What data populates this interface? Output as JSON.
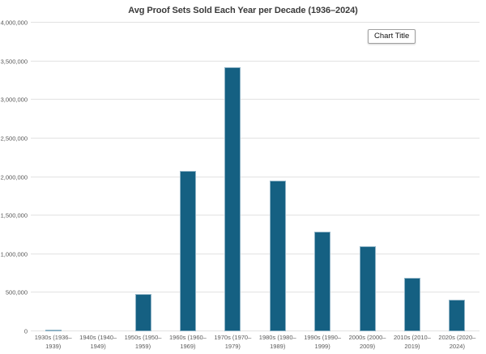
{
  "chart_data": {
    "type": "bar",
    "title": "Avg Proof Sets Sold Each Year per Decade (1936–2024)",
    "categories": [
      "1930s (1936–1939)",
      "1940s (1940–1949)",
      "1950s (1950–1959)",
      "1960s (1960–1969)",
      "1970s (1970–1979)",
      "1980s (1980–1989)",
      "1990s (1990–1999)",
      "2000s (2000–2009)",
      "2010s (2010–2019)",
      "2020s (2020–2024)"
    ],
    "values": [
      15000,
      0,
      480000,
      2080000,
      3420000,
      1950000,
      1290000,
      1100000,
      690000,
      410000
    ],
    "xlabel": "",
    "ylabel": "",
    "ylim": [
      0,
      4000000
    ],
    "ytick_step": 500000,
    "ytick_labels": [
      "0",
      "500,000",
      "1,000,000",
      "1,500,000",
      "2,000,000",
      "2,500,000",
      "3,000,000",
      "3,500,000",
      "4,000,000"
    ],
    "grid": "horizontal",
    "legend_position": "none",
    "colors": {
      "bar_fill": "#156082",
      "bar_edge": "#8fb3c6",
      "gridline": "#e2e2e2",
      "axis_text": "#595959",
      "title_text": "#3a3a3a"
    }
  },
  "tooltip": {
    "label": "Chart Title"
  }
}
